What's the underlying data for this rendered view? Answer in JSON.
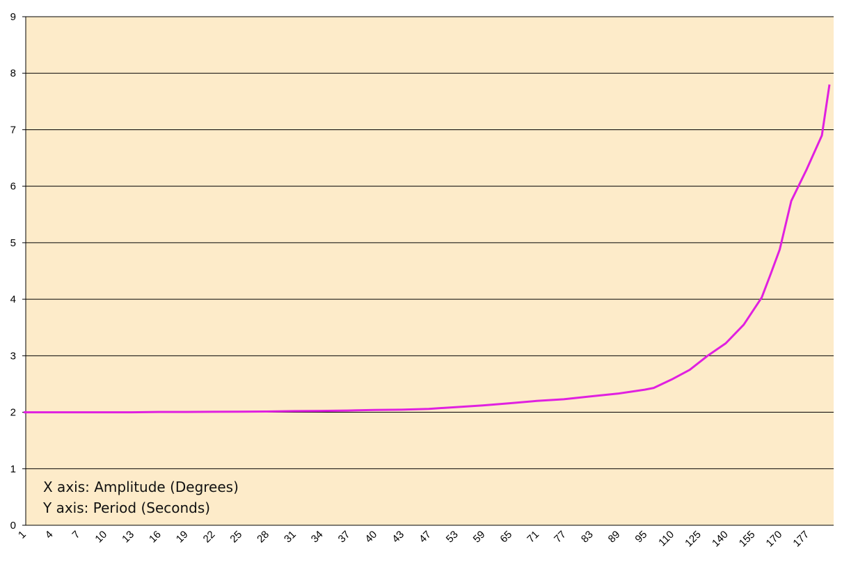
{
  "chart_data": {
    "type": "line",
    "x_tick_labels": [
      "1",
      "4",
      "7",
      "10",
      "13",
      "16",
      "19",
      "22",
      "25",
      "28",
      "31",
      "34",
      "37",
      "40",
      "43",
      "47",
      "53",
      "59",
      "65",
      "71",
      "77",
      "83",
      "89",
      "95",
      "110",
      "125",
      "140",
      "155",
      "170",
      "177"
    ],
    "y_ticks": [
      0,
      1,
      2,
      3,
      4,
      5,
      6,
      7,
      8,
      9
    ],
    "ylim": [
      0,
      9
    ],
    "grid": true,
    "colors": {
      "plot_background": "#fdebc9",
      "gridline": "#000000",
      "line": "#e020e0"
    },
    "annotations": [
      "X axis: Amplitude (Degrees)",
      "Y axis: Period (Seconds)"
    ],
    "series": [
      {
        "x": [
          1,
          4,
          7,
          10,
          13,
          16,
          19,
          22,
          25,
          28,
          31,
          34,
          37,
          40,
          43,
          47,
          53,
          59,
          65,
          71,
          77,
          83,
          89,
          95,
          100,
          110,
          120,
          130,
          140,
          150,
          160,
          165,
          170,
          173,
          177,
          179,
          180
        ],
        "y": [
          2.0,
          2.0,
          2.0,
          2.0,
          2.0,
          2.005,
          2.006,
          2.008,
          2.01,
          2.013,
          2.02,
          2.024,
          2.03,
          2.04,
          2.045,
          2.06,
          2.09,
          2.12,
          2.16,
          2.2,
          2.23,
          2.28,
          2.33,
          2.4,
          2.43,
          2.58,
          2.75,
          3.0,
          3.22,
          3.55,
          4.03,
          4.45,
          4.88,
          5.74,
          6.3,
          6.9,
          7.8
        ]
      }
    ]
  }
}
